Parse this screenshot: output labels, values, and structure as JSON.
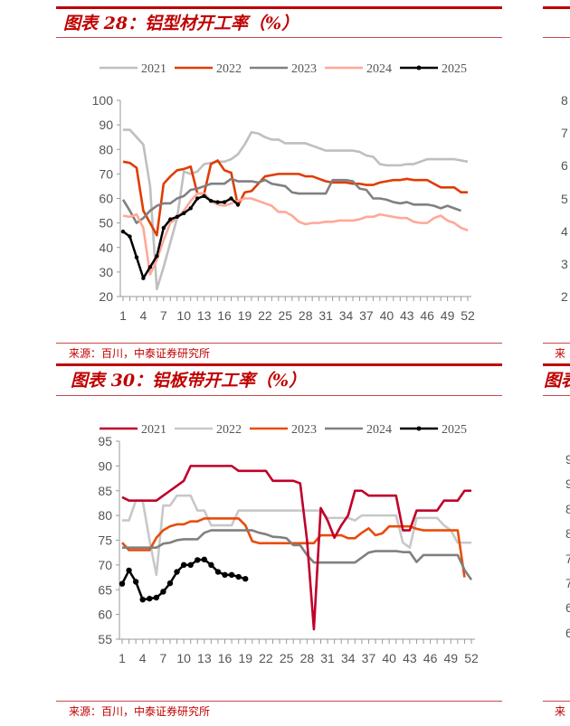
{
  "panels": [
    {
      "title": "图表 28：铝型材开工率（%）",
      "source": "来源：百川，中泰证券研究所"
    },
    {
      "title": "图表 30：铝板带开工率（%）",
      "source": "来源：百川，中泰证券研究所"
    }
  ],
  "right_partial": {
    "ticks_top": [
      "8",
      "7",
      "6",
      "5",
      "4",
      "3",
      "2"
    ],
    "ticks_bottom": [
      "9",
      "9",
      "8",
      "8",
      "7",
      "7",
      "6",
      "6"
    ],
    "source_fragment": "来",
    "title_fragment": "图表"
  },
  "chart_data": [
    {
      "type": "line",
      "title": "图表 28：铝型材开工率（%）",
      "ylim": [
        20,
        100
      ],
      "yticks": [
        20,
        30,
        40,
        50,
        60,
        70,
        80,
        90,
        100
      ],
      "xticks": [
        1,
        4,
        7,
        10,
        13,
        16,
        19,
        22,
        25,
        28,
        31,
        34,
        37,
        40,
        43,
        46,
        49,
        52
      ],
      "legend": "top",
      "grid": false,
      "series": [
        {
          "name": "2021",
          "color": "#bfbfbf",
          "values": [
            88,
            88,
            85,
            82,
            65,
            23,
            32,
            42,
            52,
            71,
            70,
            71,
            74,
            74.5,
            75,
            75,
            76,
            78,
            82,
            87,
            86.5,
            85,
            84,
            84,
            82.5,
            82.5,
            82.5,
            82.5,
            81.5,
            80.5,
            79.5,
            79.5,
            79.5,
            79.5,
            79.5,
            79,
            77.5,
            77,
            74,
            73.5,
            73.5,
            73.5,
            74,
            74,
            75,
            76,
            76,
            76,
            76,
            76,
            75.5,
            75
          ]
        },
        {
          "name": "2022",
          "color": "#e03c00",
          "values": [
            75,
            74.5,
            72.5,
            55,
            50,
            45,
            66,
            69,
            71.5,
            72,
            73,
            62,
            62,
            74,
            75.5,
            71.5,
            70.5,
            57,
            62.5,
            63,
            66,
            69,
            69.5,
            70,
            70,
            70,
            70,
            69,
            69,
            68,
            67,
            66.5,
            66.5,
            66.5,
            66,
            66,
            65.5,
            65.5,
            66.5,
            67,
            67.5,
            67.5,
            68,
            67.5,
            67.5,
            67.5,
            66,
            64.5,
            64.5,
            64.5,
            62.5,
            62.5
          ]
        },
        {
          "name": "2023",
          "color": "#808080",
          "values": [
            59.5,
            55,
            50,
            52,
            55,
            57,
            58,
            58,
            60,
            61,
            63.5,
            64,
            65,
            66,
            66,
            66,
            68,
            67,
            67,
            67,
            66.5,
            67.5,
            66,
            65.5,
            65,
            62.5,
            62,
            62,
            62,
            62,
            62,
            67.5,
            67.5,
            67.5,
            67,
            64,
            63.5,
            60,
            60,
            59.5,
            58.5,
            58,
            58.5,
            57.5,
            57.5,
            57.5,
            57,
            56,
            57,
            56,
            55
          ]
        },
        {
          "name": "2024",
          "color": "#ffa898",
          "values": [
            53,
            52.5,
            53.5,
            48,
            29,
            35,
            43,
            50,
            52,
            55,
            59,
            62,
            62,
            59,
            57.5,
            57,
            58,
            59,
            60,
            60,
            59,
            58,
            57,
            54.5,
            54.5,
            53,
            50.5,
            49.5,
            50,
            50,
            50.5,
            50.5,
            51,
            51,
            51,
            51.5,
            52.5,
            52.5,
            53.5,
            53,
            52.5,
            52,
            52,
            50.5,
            50,
            50,
            52,
            53,
            51,
            50,
            48,
            47
          ]
        },
        {
          "name": "2025",
          "color": "#000000",
          "markers": true,
          "values": [
            46.5,
            44.5,
            36,
            27.5,
            32,
            36.5,
            48,
            51.5,
            52.5,
            54,
            56,
            60,
            61,
            59,
            58.5,
            58.5,
            60,
            57.5
          ]
        }
      ]
    },
    {
      "type": "line",
      "title": "图表 30：铝板带开工率（%）",
      "ylim": [
        55,
        95
      ],
      "yticks": [
        55,
        60,
        65,
        70,
        75,
        80,
        85,
        90,
        95
      ],
      "xticks": [
        1,
        4,
        7,
        10,
        13,
        16,
        19,
        22,
        25,
        28,
        31,
        34,
        37,
        40,
        43,
        46,
        49,
        52
      ],
      "legend": "top",
      "grid": false,
      "series": [
        {
          "name": "2021",
          "color": "#c0002a",
          "values": [
            83.7,
            83,
            83,
            83,
            83,
            83,
            84,
            85,
            86,
            87,
            90,
            90,
            90,
            90,
            90,
            90,
            90,
            89,
            89,
            89,
            89,
            89,
            87,
            87,
            87,
            87,
            86.5,
            75,
            57,
            81.5,
            79,
            75.5,
            78,
            80,
            85,
            85,
            84,
            84,
            84,
            84,
            84,
            77,
            77,
            81,
            81,
            81,
            81,
            83,
            83,
            83,
            85,
            85
          ]
        },
        {
          "name": "2022",
          "color": "#c8c8c8",
          "values": [
            79,
            79,
            83,
            83,
            75,
            68,
            82,
            82,
            84,
            84,
            84,
            81,
            81,
            78,
            78,
            78,
            78,
            81,
            81,
            81,
            81,
            81,
            81,
            81,
            81,
            81,
            81,
            81,
            81,
            81,
            79.5,
            79.5,
            79.5,
            79.5,
            79,
            80,
            80,
            80,
            80,
            80,
            80,
            74.5,
            73.5,
            79.5,
            79.5,
            79.5,
            79.5,
            78,
            77,
            74.5,
            74.5,
            74.5
          ]
        },
        {
          "name": "2023",
          "color": "#e84c0a",
          "values": [
            74.5,
            73,
            73,
            73,
            73,
            75.5,
            77,
            77.8,
            78.2,
            78.2,
            78.8,
            78.8,
            79.4,
            79.4,
            79.4,
            79.4,
            79.4,
            79.4,
            78,
            74.8,
            74.4,
            74.4,
            74.4,
            74.4,
            74.4,
            74.4,
            74.4,
            74.4,
            74.4,
            76,
            76,
            76,
            76,
            75.4,
            75.4,
            76.5,
            77.4,
            76,
            76.4,
            77.8,
            77.8,
            77.8,
            77.8,
            77.3,
            77,
            77,
            77,
            77,
            77,
            77,
            67.5
          ]
        },
        {
          "name": "2024",
          "color": "#808080",
          "values": [
            73.5,
            73.5,
            73.5,
            73.5,
            73.5,
            73.5,
            74.3,
            74.5,
            75,
            75.2,
            75.2,
            75.2,
            76.5,
            77,
            77,
            77,
            77,
            77,
            77,
            77,
            76.5,
            76.2,
            75.7,
            75.6,
            75.4,
            74,
            74,
            72,
            70.5,
            70.5,
            70.5,
            70.5,
            70.5,
            70.5,
            70.5,
            71.5,
            72.5,
            72.8,
            72.8,
            72.8,
            72.8,
            72.6,
            72.6,
            70.6,
            72,
            72,
            72,
            72,
            72,
            72,
            69,
            67
          ]
        },
        {
          "name": "2025",
          "color": "#000000",
          "markers": true,
          "values": [
            66.2,
            68.9,
            66.6,
            63,
            63.2,
            63.4,
            64.6,
            66.3,
            68.6,
            70,
            70,
            71,
            71.1,
            70,
            68.6,
            68,
            68,
            67.6,
            67.2
          ]
        }
      ]
    }
  ]
}
